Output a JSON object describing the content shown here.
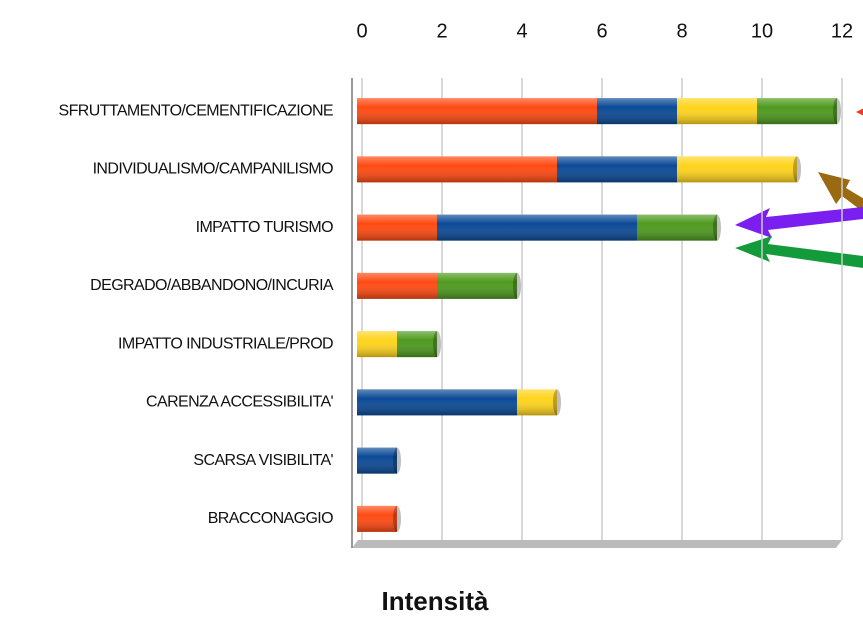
{
  "chart_data": {
    "type": "stacked-barh",
    "categories": [
      "SFRUTTAMENTO/CEMENTIFICAZIONE",
      "INDIVIDUALISMO/CAMPANILISMO",
      "IMPATTO TURISMO",
      "DEGRADO/ABBANDONO/INCURIA",
      "IMPATTO INDUSTRIALE/PROD",
      "CARENZA ACCESSIBILITA'",
      "SCARSA VISIBILITA'",
      "BRACCONAGGIO"
    ],
    "series": [
      {
        "color": "#ff4a12",
        "values": [
          6,
          5,
          2,
          2,
          0,
          0,
          0,
          1
        ]
      },
      {
        "color": "#0b4a96",
        "values": [
          2,
          3,
          5,
          0,
          0,
          4,
          1,
          0
        ]
      },
      {
        "color": "#ffd41c",
        "values": [
          2,
          3,
          0,
          0,
          1,
          1,
          0,
          0
        ]
      },
      {
        "color": "#4e9a1e",
        "values": [
          2,
          0,
          2,
          2,
          1,
          0,
          0,
          0
        ]
      }
    ],
    "xlabel": "Intensità",
    "xlim": [
      0,
      12
    ],
    "xticks": [
      0,
      2,
      4,
      6,
      8,
      10,
      12
    ],
    "grid": true
  }
}
